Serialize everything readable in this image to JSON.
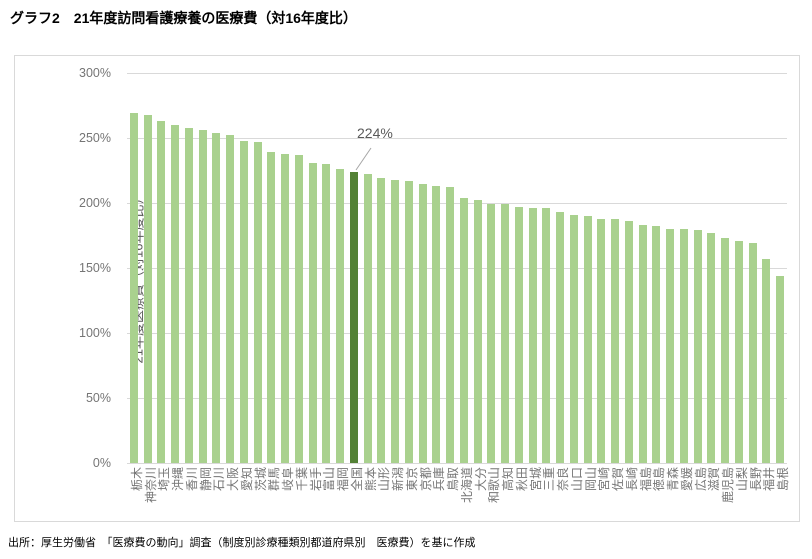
{
  "title": "グラフ2　21年度訪問看護療養の医療費（対16年度比）",
  "footer": "出所：厚生労働省　「医療費の動向」調査（制度別診療種類別都道府県別　医療費）を基に作成",
  "chart_data": {
    "type": "bar",
    "title": "グラフ2　21年度訪問看護療養の医療費（対16年度比）",
    "xlabel": "",
    "ylabel": "21年度医療費（対16年度比）",
    "ylim": [
      0,
      300
    ],
    "grid": true,
    "legend": "none",
    "ytick_values": [
      0,
      50,
      100,
      150,
      200,
      250,
      300
    ],
    "ytick_labels": [
      "0%",
      "50%",
      "100%",
      "150%",
      "200%",
      "250%",
      "300%"
    ],
    "annotation": {
      "label": "224%",
      "category": "全国",
      "value": 224
    },
    "highlight_category": "全国",
    "categories": [
      "栃木",
      "神奈川",
      "埼玉",
      "沖縄",
      "香川",
      "静岡",
      "石川",
      "大阪",
      "愛知",
      "茨城",
      "群馬",
      "岐阜",
      "千葉",
      "岩手",
      "富山",
      "福岡",
      "全国",
      "熊本",
      "山形",
      "新潟",
      "東京",
      "京都",
      "兵庫",
      "鳥取",
      "北海道",
      "大分",
      "和歌山",
      "高知",
      "秋田",
      "宮城",
      "三重",
      "奈良",
      "山口",
      "岡山",
      "宮崎",
      "佐賀",
      "長崎",
      "福島",
      "徳島",
      "青森",
      "愛媛",
      "広島",
      "滋賀",
      "鹿児島",
      "山梨",
      "長野",
      "福井",
      "島根"
    ],
    "values": [
      269,
      268,
      263,
      260,
      258,
      256,
      254,
      252,
      248,
      247,
      239,
      238,
      237,
      231,
      230,
      226,
      224,
      222,
      219,
      218,
      217,
      215,
      213,
      212,
      204,
      202,
      199,
      199,
      197,
      196,
      196,
      193,
      191,
      190,
      188,
      188,
      186,
      183,
      182,
      180,
      180,
      179,
      177,
      173,
      171,
      169,
      157,
      144
    ],
    "colors": {
      "bar": "#a9d18e",
      "bar_highlight": "#538135",
      "grid": "#d9d9d9",
      "tick_text": "#757575",
      "annotation_text": "#595959",
      "annotation_line": "#a6a6a6"
    }
  }
}
